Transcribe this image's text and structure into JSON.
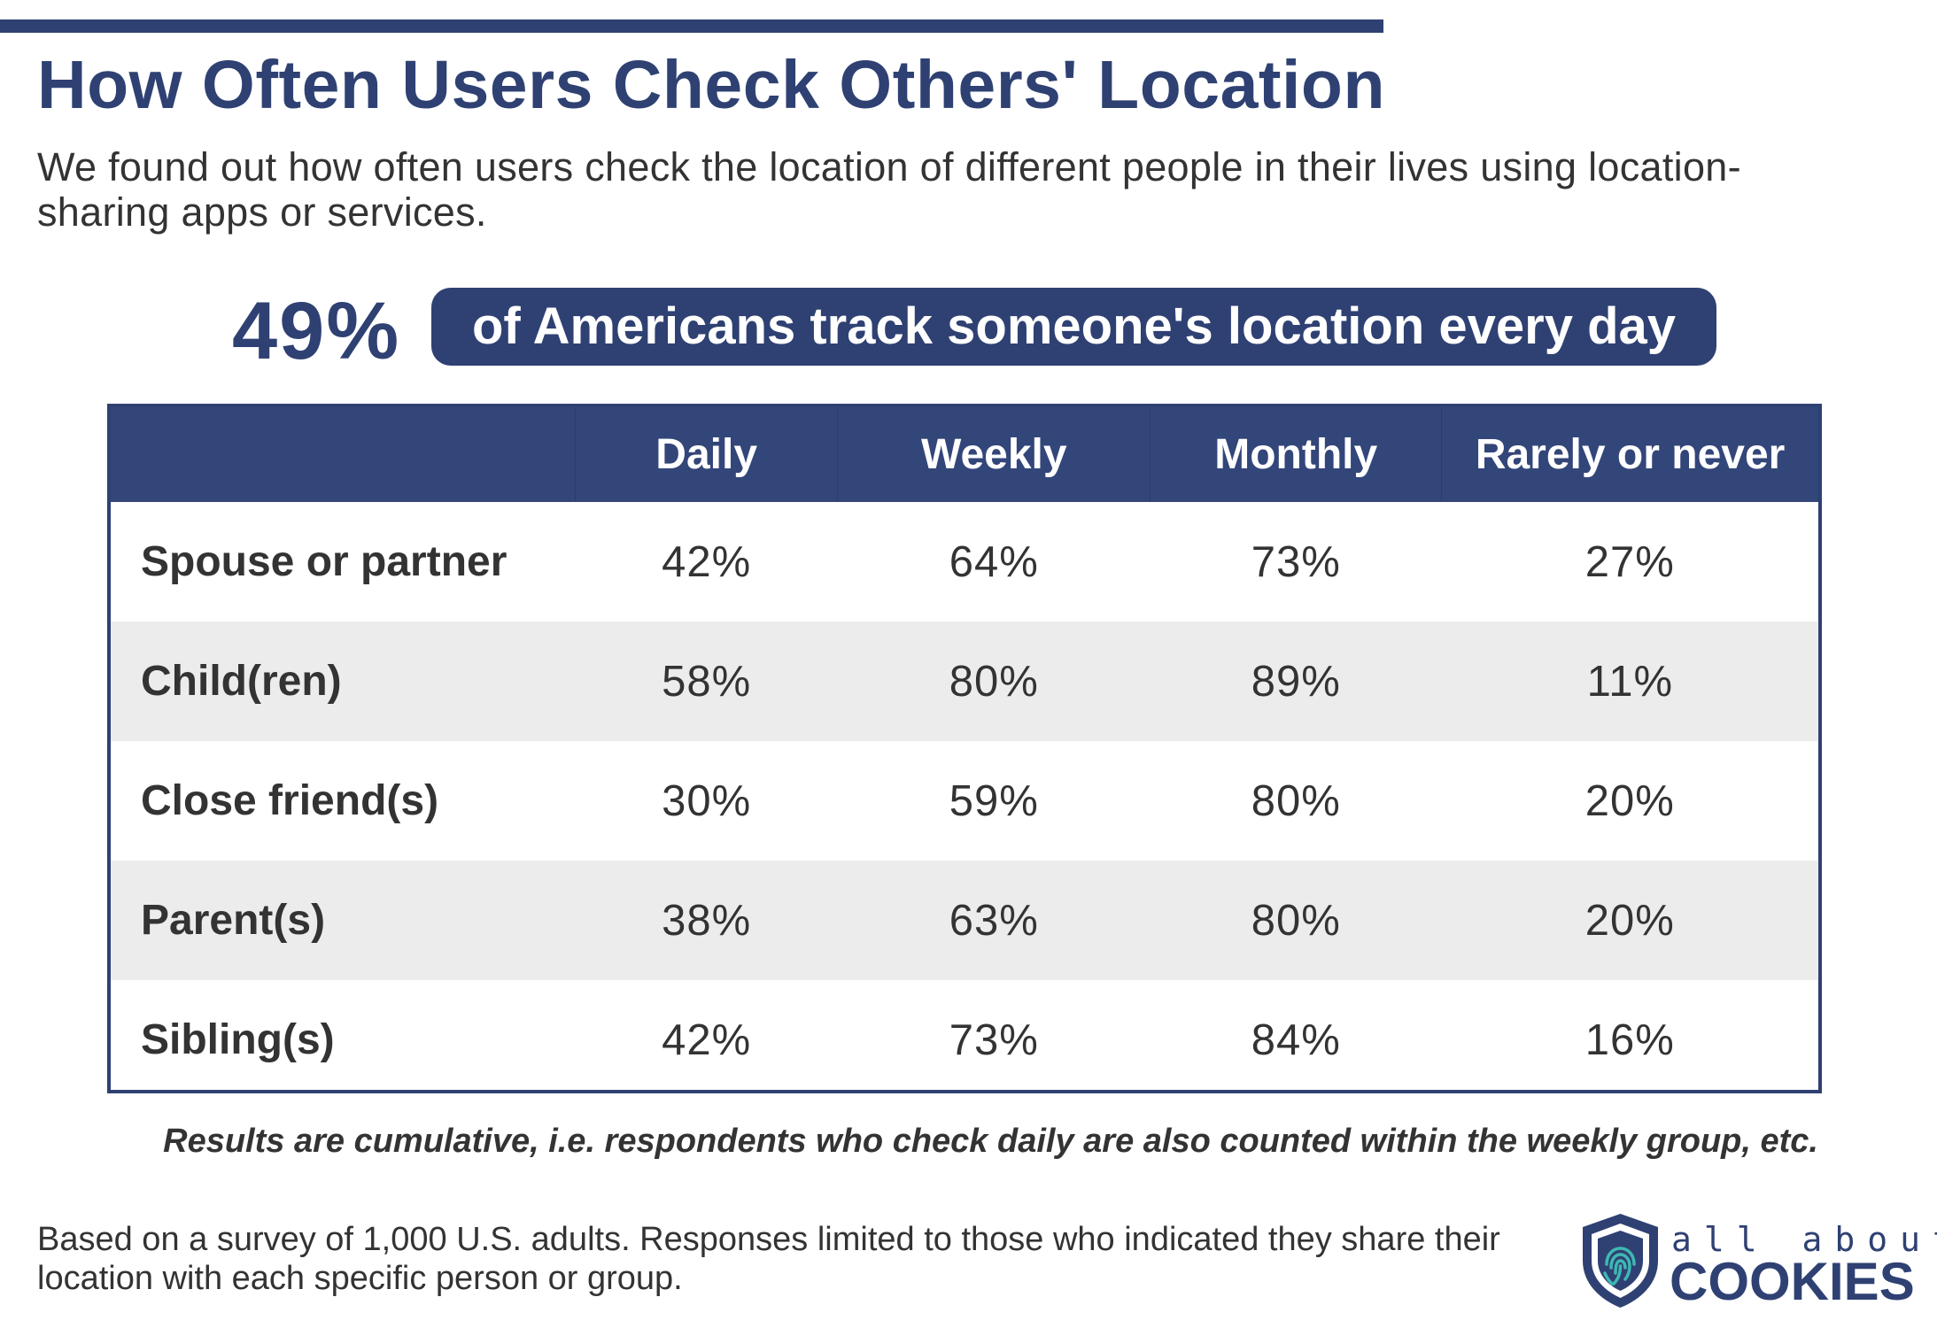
{
  "header": {
    "title": "How Often Users Check Others' Location",
    "subtitle": "We found out how often users check the location of different people in their lives using location-sharing apps or services."
  },
  "highlight": {
    "number": "49%",
    "text": "of Americans track someone's location every day"
  },
  "chart_data": {
    "type": "table",
    "columns": [
      "",
      "Daily",
      "Weekly",
      "Monthly",
      "Rarely or never"
    ],
    "rows": [
      {
        "label": "Spouse or partner",
        "values": [
          "42%",
          "64%",
          "73%",
          "27%"
        ]
      },
      {
        "label": "Child(ren)",
        "values": [
          "58%",
          "80%",
          "89%",
          "11%"
        ]
      },
      {
        "label": "Close friend(s)",
        "values": [
          "30%",
          "59%",
          "80%",
          "20%"
        ]
      },
      {
        "label": "Parent(s)",
        "values": [
          "38%",
          "63%",
          "80%",
          "20%"
        ]
      },
      {
        "label": "Sibling(s)",
        "values": [
          "42%",
          "73%",
          "84%",
          "16%"
        ]
      }
    ]
  },
  "note": "Results are cumulative, i.e. respondents who check daily are also counted within the weekly group, etc.",
  "footer": "Based on a survey of 1,000 U.S. adults. Responses limited to those who indicated they share their location with each specific person or group.",
  "logo": {
    "line1": "all about",
    "line2": "COOKIES",
    "icon": "shield-fingerprint-icon"
  },
  "colors": {
    "brand": "#2f4173",
    "header_bg": "#33467a",
    "alt_row": "#ececec",
    "logo_teal": "#3fb8b2"
  }
}
